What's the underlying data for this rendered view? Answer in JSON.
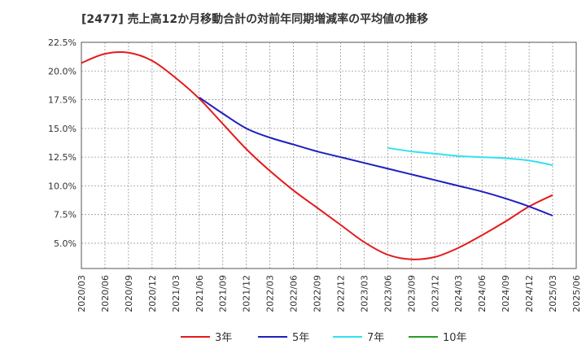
{
  "chart_data": {
    "type": "line",
    "title": "[2477]  売上高12か月移動合計の対前年同期増減率の平均値の推移",
    "x": [
      "2020/03",
      "2020/06",
      "2020/09",
      "2020/12",
      "2021/03",
      "2021/06",
      "2021/09",
      "2021/12",
      "2022/03",
      "2022/06",
      "2022/09",
      "2022/12",
      "2023/03",
      "2023/06",
      "2023/09",
      "2023/12",
      "2024/03",
      "2024/06",
      "2024/09",
      "2024/12",
      "2025/03",
      "2025/06"
    ],
    "y_ticks": [
      "22.5%",
      "20.0%",
      "17.5%",
      "15.0%",
      "12.5%",
      "10.0%",
      "7.5%",
      "5.0%"
    ],
    "ylim": [
      2.8,
      22.5
    ],
    "grid": true,
    "legend_position": "bottom",
    "series": [
      {
        "name": "3年",
        "color": "#e41a1c",
        "values": [
          20.7,
          21.5,
          21.6,
          20.9,
          19.4,
          17.6,
          15.4,
          13.2,
          11.3,
          9.6,
          8.1,
          6.6,
          5.1,
          4.0,
          3.6,
          3.8,
          4.6,
          5.7,
          6.9,
          8.2,
          9.2,
          null
        ]
      },
      {
        "name": "5年",
        "color": "#1f1fbf",
        "values": [
          null,
          null,
          null,
          null,
          null,
          17.7,
          16.3,
          15.0,
          14.2,
          13.6,
          13.0,
          12.5,
          12.0,
          11.5,
          11.0,
          10.5,
          10.0,
          9.5,
          8.9,
          8.2,
          7.4,
          null
        ]
      },
      {
        "name": "7年",
        "color": "#33e0f0",
        "values": [
          null,
          null,
          null,
          null,
          null,
          null,
          null,
          null,
          null,
          null,
          null,
          null,
          null,
          13.3,
          13.0,
          12.8,
          12.6,
          12.5,
          12.4,
          12.2,
          11.8,
          null
        ]
      },
      {
        "name": "10年",
        "color": "#2a9a2a",
        "values": [
          null,
          null,
          null,
          null,
          null,
          null,
          null,
          null,
          null,
          null,
          null,
          null,
          null,
          null,
          null,
          null,
          null,
          null,
          null,
          null,
          null,
          null
        ]
      }
    ]
  }
}
